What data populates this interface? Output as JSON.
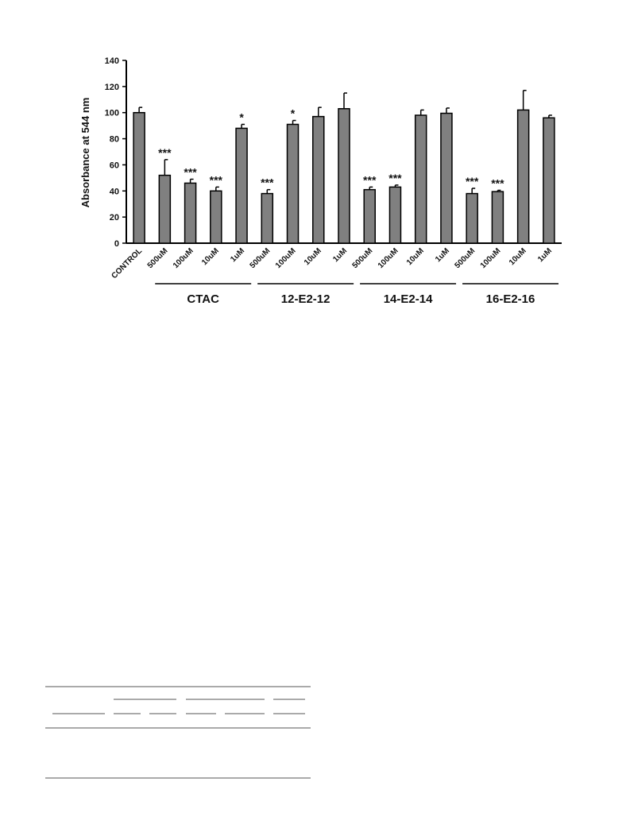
{
  "chart_data": {
    "type": "bar",
    "title": "",
    "ylabel": "Absorbance at 544 nm",
    "xlabel": "",
    "ylim": [
      0,
      140
    ],
    "yticks": [
      "0",
      "20",
      "40",
      "60",
      "80",
      "100",
      "120",
      "140"
    ],
    "bar_color": "#808080",
    "grid": false,
    "categories": [
      "CONTROL",
      "500uM",
      "100uM",
      "10uM",
      "1uM",
      "500uM",
      "100uM",
      "10uM",
      "1uM",
      "500uM",
      "100uM",
      "10uM",
      "1uM",
      "500uM",
      "100uM",
      "10uM",
      "1uM"
    ],
    "values": [
      100,
      52,
      46,
      40,
      88,
      38,
      91,
      97,
      103,
      41,
      43,
      98,
      99.5,
      38,
      39.5,
      102,
      96
    ],
    "errors": [
      4,
      12,
      3,
      3,
      3,
      3,
      3,
      7,
      12,
      2,
      1.5,
      4,
      4,
      4,
      1,
      15,
      2
    ],
    "significance": [
      "",
      "***",
      "***",
      "***",
      "*",
      "***",
      "*",
      "",
      "",
      "***",
      "***",
      "",
      "",
      "***",
      "***",
      "",
      ""
    ],
    "groups": [
      {
        "label": "CTAC",
        "start": 1,
        "end": 4
      },
      {
        "label": "12-E2-12",
        "start": 5,
        "end": 8
      },
      {
        "label": "14-E2-14",
        "start": 9,
        "end": 12
      },
      {
        "label": "16-E2-16",
        "start": 13,
        "end": 16
      }
    ]
  }
}
